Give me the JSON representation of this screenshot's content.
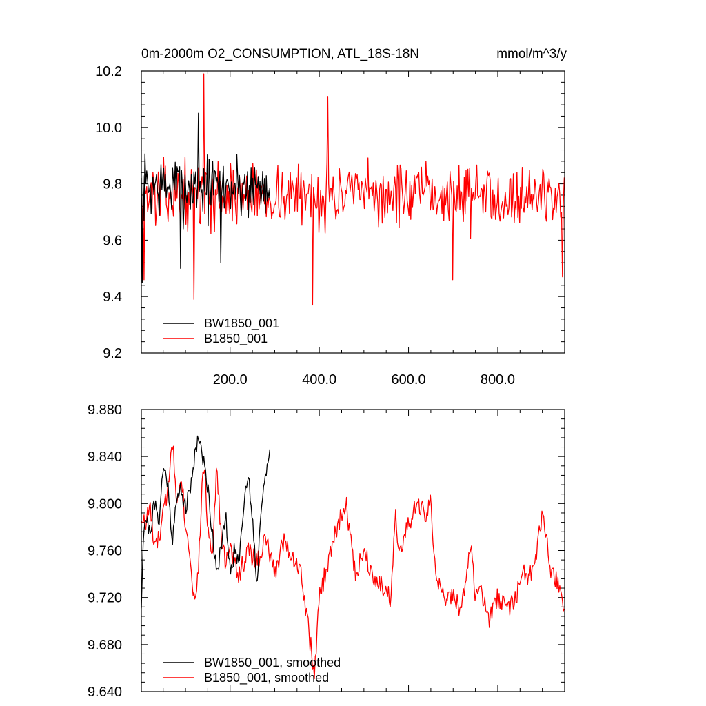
{
  "chart_data": [
    {
      "type": "line",
      "title": "0m-2000m O2_CONSUMPTION, ATL_18S-18N",
      "units": "mmol/m^3/y",
      "xlabel": "",
      "ylabel": "",
      "xlim": [
        1,
        950
      ],
      "ylim": [
        9.2,
        10.2
      ],
      "xticks": [
        200,
        400,
        600,
        800
      ],
      "xtick_labels": [
        "200.0",
        "400.0",
        "600.0",
        "800.0"
      ],
      "yticks": [
        9.2,
        9.4,
        9.6,
        9.8,
        10.0,
        10.2
      ],
      "ytick_labels": [
        "9.2",
        "9.4",
        "9.6",
        "9.8",
        "10.0",
        "10.2"
      ],
      "legend_position": "bottom-left",
      "grid": false,
      "series": [
        {
          "name": "BW1850_001",
          "color": "#000000",
          "x_start": 1,
          "x_end": 290,
          "mean": 9.79,
          "spread": 0.11,
          "noise_seed": 7,
          "notable_points": [
            {
              "x": 3,
              "y": 9.45
            },
            {
              "x": 90,
              "y": 9.5
            },
            {
              "x": 130,
              "y": 10.05
            },
            {
              "x": 180,
              "y": 9.52
            }
          ]
        },
        {
          "name": "B1850_001",
          "color": "#ff0000",
          "x_start": 1,
          "x_end": 950,
          "mean": 9.76,
          "spread": 0.1,
          "noise_seed": 13,
          "notable_points": [
            {
              "x": 8,
              "y": 9.46
            },
            {
              "x": 120,
              "y": 9.39
            },
            {
              "x": 142,
              "y": 10.19
            },
            {
              "x": 385,
              "y": 9.37
            },
            {
              "x": 420,
              "y": 10.11
            },
            {
              "x": 700,
              "y": 9.46
            },
            {
              "x": 945,
              "y": 9.47
            }
          ]
        }
      ]
    },
    {
      "type": "line",
      "title": "",
      "xlabel": "",
      "ylabel": "",
      "xlim": [
        1,
        950
      ],
      "ylim": [
        9.64,
        9.88
      ],
      "xticks": [
        200,
        400,
        600,
        800
      ],
      "yticks": [
        9.64,
        9.68,
        9.72,
        9.76,
        9.8,
        9.84,
        9.88
      ],
      "ytick_labels": [
        "9.640",
        "9.680",
        "9.720",
        "9.760",
        "9.800",
        "9.840",
        "9.880"
      ],
      "legend_position": "bottom-left",
      "grid": false,
      "series": [
        {
          "name": "BW1850_001, smoothed",
          "color": "#000000",
          "x_start": 1,
          "x_end": 290,
          "noise": 0.008,
          "noise_seed": 21,
          "x": [
            1,
            5,
            10,
            20,
            30,
            40,
            50,
            60,
            70,
            80,
            90,
            100,
            110,
            120,
            130,
            140,
            150,
            160,
            170,
            180,
            190,
            200,
            210,
            220,
            230,
            240,
            250,
            260,
            270,
            280,
            290
          ],
          "y": [
            9.715,
            9.77,
            9.79,
            9.775,
            9.8,
            9.785,
            9.83,
            9.82,
            9.77,
            9.8,
            9.815,
            9.795,
            9.81,
            9.84,
            9.86,
            9.835,
            9.815,
            9.775,
            9.745,
            9.76,
            9.79,
            9.74,
            9.76,
            9.75,
            9.8,
            9.825,
            9.79,
            9.73,
            9.8,
            9.83,
            9.84
          ]
        },
        {
          "name": "B1850_001, smoothed",
          "color": "#ff0000",
          "x_start": 1,
          "x_end": 950,
          "noise": 0.009,
          "noise_seed": 33,
          "x": [
            1,
            10,
            20,
            30,
            40,
            50,
            60,
            70,
            80,
            90,
            100,
            110,
            120,
            130,
            140,
            150,
            160,
            170,
            180,
            190,
            200,
            220,
            240,
            260,
            280,
            300,
            320,
            340,
            360,
            370,
            380,
            390,
            400,
            420,
            440,
            460,
            470,
            480,
            500,
            520,
            540,
            560,
            570,
            580,
            600,
            620,
            640,
            650,
            660,
            680,
            700,
            720,
            740,
            750,
            760,
            780,
            800,
            820,
            840,
            860,
            880,
            900,
            920,
            940,
            950
          ],
          "y": [
            9.79,
            9.78,
            9.8,
            9.76,
            9.77,
            9.79,
            9.81,
            9.86,
            9.8,
            9.83,
            9.78,
            9.76,
            9.715,
            9.75,
            9.84,
            9.78,
            9.76,
            9.83,
            9.77,
            9.75,
            9.76,
            9.74,
            9.76,
            9.75,
            9.77,
            9.74,
            9.77,
            9.755,
            9.74,
            9.71,
            9.68,
            9.655,
            9.72,
            9.75,
            9.78,
            9.8,
            9.77,
            9.74,
            9.76,
            9.74,
            9.73,
            9.72,
            9.79,
            9.76,
            9.78,
            9.8,
            9.79,
            9.8,
            9.74,
            9.72,
            9.72,
            9.71,
            9.77,
            9.715,
            9.73,
            9.7,
            9.72,
            9.71,
            9.72,
            9.74,
            9.74,
            9.79,
            9.74,
            9.73,
            9.7
          ]
        }
      ]
    }
  ]
}
